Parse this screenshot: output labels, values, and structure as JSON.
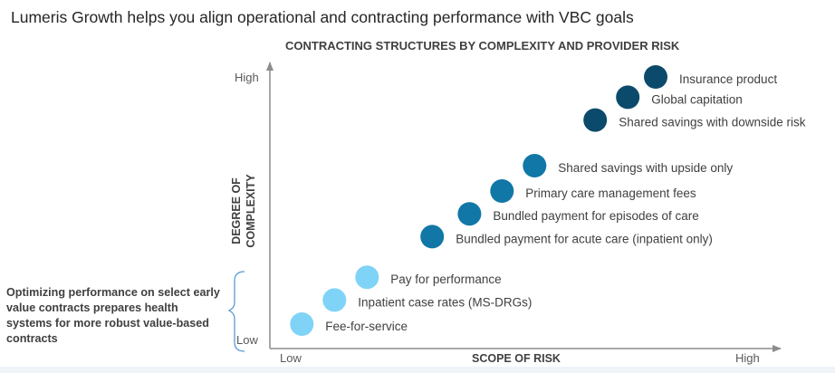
{
  "page": {
    "title": "Lumeris Growth helps you align operational and contracting performance with VBC goals"
  },
  "side_note": "Optimizing performance on select early value contracts prepares health systems for more robust value-based contracts",
  "colors": {
    "light": "#7fd3f7",
    "medium": "#1177a6",
    "dark": "#0c4a6b",
    "axis": "#8c8c8c",
    "bracket": "#5b9bd5"
  },
  "chart_data": {
    "type": "scatter",
    "title": "CONTRACTING STRUCTURES BY COMPLEXITY AND PROVIDER RISK",
    "xlabel": "SCOPE OF RISK",
    "ylabel_lines": [
      "DEGREE OF",
      "COMPLEXITY"
    ],
    "x_ticks": [
      "Low",
      "High"
    ],
    "y_ticks": [
      "Low",
      "High"
    ],
    "xlim": [
      0,
      10
    ],
    "ylim": [
      0,
      10
    ],
    "points": [
      {
        "label": "Fee-for-service",
        "x": 0.2,
        "y": 0.25,
        "tier": "light"
      },
      {
        "label": "Inpatient case rates (MS-DRGs)",
        "x": 0.9,
        "y": 1.2,
        "tier": "light"
      },
      {
        "label": "Pay for performance",
        "x": 1.6,
        "y": 2.1,
        "tier": "light"
      },
      {
        "label": "Bundled payment for acute care (inpatient only)",
        "x": 3.0,
        "y": 3.7,
        "tier": "medium"
      },
      {
        "label": "Bundled payment for episodes of care",
        "x": 3.8,
        "y": 4.6,
        "tier": "medium"
      },
      {
        "label": "Primary care management fees",
        "x": 4.5,
        "y": 5.5,
        "tier": "medium"
      },
      {
        "label": "Shared savings with upside only",
        "x": 5.2,
        "y": 6.5,
        "tier": "medium"
      },
      {
        "label": "Shared savings with downside risk",
        "x": 6.5,
        "y": 8.3,
        "tier": "dark"
      },
      {
        "label": "Global capitation",
        "x": 7.2,
        "y": 9.2,
        "tier": "dark"
      },
      {
        "label": "Insurance product",
        "x": 7.8,
        "y": 10.0,
        "tier": "dark"
      }
    ]
  }
}
